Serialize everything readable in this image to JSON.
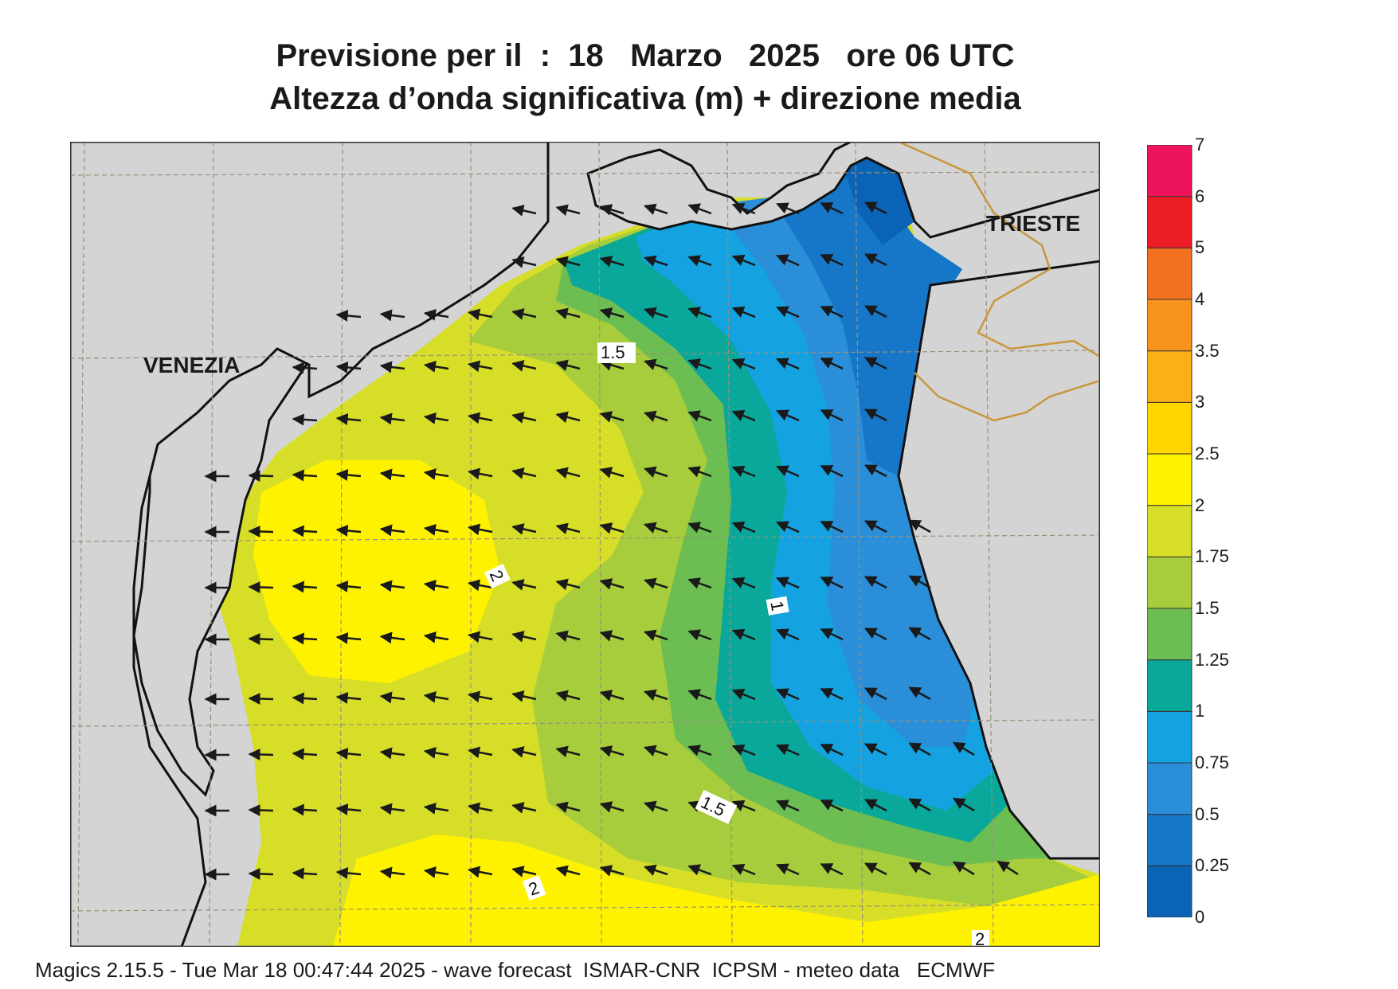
{
  "title_line1": "Previsione per il  :  18   Marzo   2025   ore 06 UTC",
  "title_line2": "Altezza d’onda significativa (m) + direzione media",
  "footer": "Magics 2.15.5 - Tue Mar 18 00:47:44 2025 - wave forecast  ISMAR-CNR  ICPSM - meteo data   ECMWF",
  "cities": [
    {
      "name": "VENEZIA"
    },
    {
      "name": "TRIESTE"
    }
  ],
  "contour_labels": [
    "1.5",
    "2",
    "1",
    "1.5",
    "2",
    "2"
  ],
  "legend": {
    "levels": [
      "0",
      "0.25",
      "0.5",
      "0.75",
      "1",
      "1.25",
      "1.5",
      "1.75",
      "2",
      "2.5",
      "3",
      "3.5",
      "4",
      "5",
      "6",
      "7"
    ],
    "colors": [
      "#0a63b5",
      "#1677c8",
      "#2a8fd8",
      "#14a3e0",
      "#0aa89a",
      "#6cbd52",
      "#a7cc3c",
      "#d6de28",
      "#fff200",
      "#ffd500",
      "#fbb016",
      "#f8931d",
      "#f37021",
      "#ec1c24",
      "#ee145b"
    ]
  },
  "colors": {
    "land": "#d4d4d4",
    "coast": "#111111",
    "border": "#c8963c",
    "grid": "#9a8f7a"
  }
}
